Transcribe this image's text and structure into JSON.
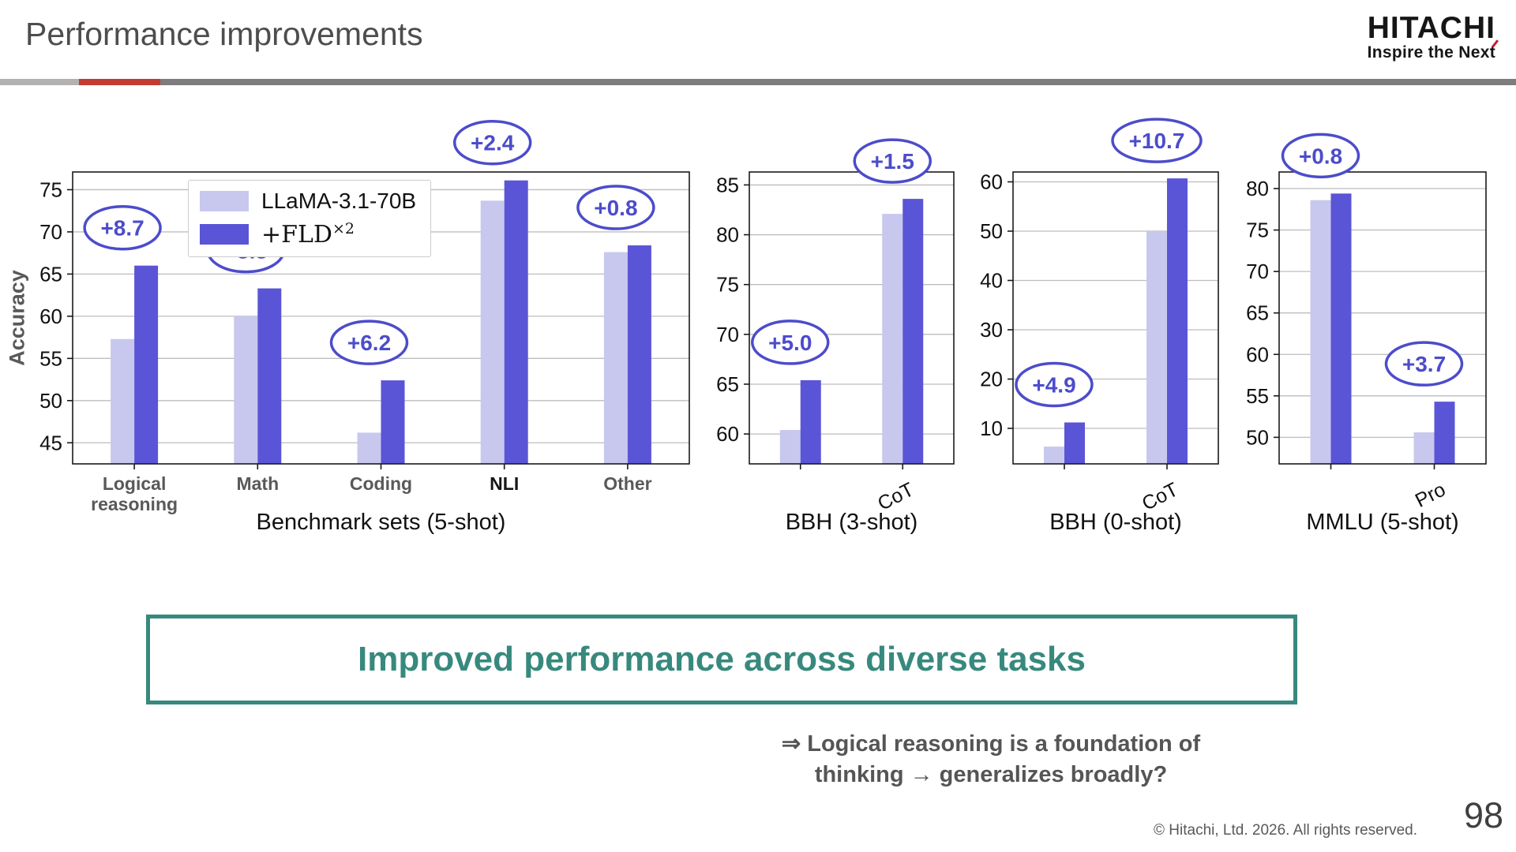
{
  "header": {
    "title": "Performance improvements",
    "logo": {
      "name": "HITACHI",
      "slogan": "Inspire the Next"
    }
  },
  "ylabel": "Accuracy",
  "legend": {
    "series1": "LLaMA-3.1-70B",
    "series2_base": "+FLD",
    "series2_sup": "×2"
  },
  "colors": {
    "light_bar": "#c8c8ee",
    "dark_bar": "#5a55d6",
    "annotation": "#4c4ccb",
    "teal": "#37897d",
    "grid": "#bdbdbd",
    "axis": "#1a1a1a",
    "divider_red": "#c43b32"
  },
  "chart_data": [
    {
      "type": "bar",
      "title": "Benchmark sets (5-shot)",
      "ylabel": "Accuracy",
      "categories": [
        "Logical\nreasoning",
        "Math",
        "Coding",
        "NLI",
        "Other"
      ],
      "highlight_category": "NLI",
      "series": [
        {
          "name": "LLaMA-3.1-70B",
          "values": [
            57.3,
            60.0,
            46.2,
            73.7,
            67.6
          ]
        },
        {
          "name": "+FLD×2",
          "values": [
            66.0,
            63.3,
            52.4,
            76.1,
            68.4
          ]
        }
      ],
      "annotations": [
        "+8.7",
        "+3.3",
        "+6.2",
        "+2.4",
        "+0.8"
      ],
      "yticks": [
        45,
        50,
        55,
        60,
        65,
        70,
        75
      ],
      "ylim": [
        42.5,
        77.1
      ],
      "grid": true,
      "legend_position": "upper center",
      "rotated_xticks": false
    },
    {
      "type": "bar",
      "title": "BBH (3-shot)",
      "categories": [
        "",
        "CoT"
      ],
      "series": [
        {
          "name": "LLaMA-3.1-70B",
          "values": [
            60.4,
            82.1
          ]
        },
        {
          "name": "+FLD×2",
          "values": [
            65.4,
            83.6
          ]
        }
      ],
      "annotations": [
        "+5.0",
        "+1.5"
      ],
      "yticks": [
        60,
        65,
        70,
        75,
        80,
        85
      ],
      "ylim": [
        57.0,
        86.3
      ],
      "grid": true,
      "rotated_xticks": true
    },
    {
      "type": "bar",
      "title": "BBH (0-shot)",
      "categories": [
        "",
        "CoT"
      ],
      "series": [
        {
          "name": "LLaMA-3.1-70B",
          "values": [
            6.3,
            50.0
          ]
        },
        {
          "name": "+FLD×2",
          "values": [
            11.2,
            60.7
          ]
        }
      ],
      "annotations": [
        "+4.9",
        "+10.7"
      ],
      "yticks": [
        10,
        20,
        30,
        40,
        50,
        60
      ],
      "ylim": [
        2.8,
        62.0
      ],
      "grid": true,
      "rotated_xticks": true
    },
    {
      "type": "bar",
      "title": "MMLU (5-shot)",
      "categories": [
        "",
        "Pro"
      ],
      "series": [
        {
          "name": "LLaMA-3.1-70B",
          "values": [
            78.6,
            50.6
          ]
        },
        {
          "name": "+FLD×2",
          "values": [
            79.4,
            54.3
          ]
        }
      ],
      "annotations": [
        "+0.8",
        "+3.7"
      ],
      "yticks": [
        50,
        55,
        60,
        65,
        70,
        75,
        80
      ],
      "ylim": [
        46.8,
        82.0
      ],
      "grid": true,
      "rotated_xticks": true
    }
  ],
  "callout": {
    "text": "Improved performance across diverse tasks"
  },
  "note": {
    "line1": "⇒ Logical reasoning is a foundation of",
    "line2": "thinking → generalizes broadly?"
  },
  "footer": {
    "copyright": "© Hitachi, Ltd. 2026. All rights reserved.",
    "page": "98"
  }
}
